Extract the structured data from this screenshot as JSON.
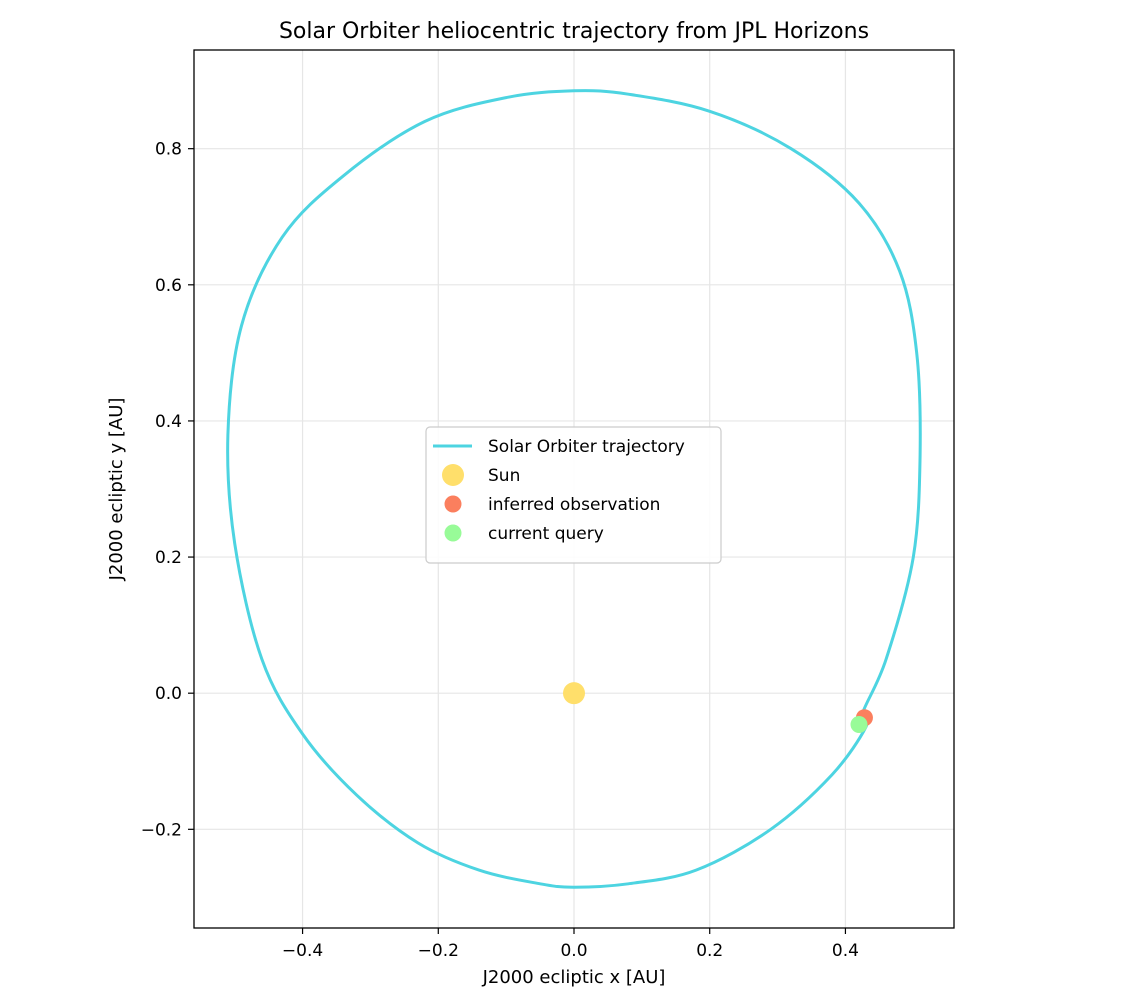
{
  "chart_data": {
    "type": "scatter",
    "title": "Solar Orbiter heliocentric trajectory from JPL Horizons",
    "xlabel": "J2000 ecliptic x [AU]",
    "ylabel": "J2000 ecliptic y [AU]",
    "xlim": [
      -0.56,
      0.56
    ],
    "ylim": [
      -0.345,
      0.945
    ],
    "xticks": [
      -0.4,
      -0.2,
      0.0,
      0.2,
      0.4
    ],
    "xtick_labels": [
      "−0.4",
      "−0.2",
      "0.0",
      "0.2",
      "0.4"
    ],
    "yticks": [
      -0.2,
      0.0,
      0.2,
      0.4,
      0.6,
      0.8
    ],
    "ytick_labels": [
      "−0.2",
      "0.0",
      "0.2",
      "0.4",
      "0.6",
      "0.8"
    ],
    "grid": true,
    "legend_position": "center",
    "series": [
      {
        "name": "Solar Orbiter trajectory",
        "kind": "line",
        "color": "#4dd4e1",
        "x": [
          0.425,
          0.46,
          0.5,
          0.51,
          0.505,
          0.48,
          0.42,
          0.32,
          0.2,
          0.08,
          0.0,
          -0.1,
          -0.22,
          -0.34,
          -0.43,
          -0.49,
          -0.51,
          -0.5,
          -0.46,
          -0.4,
          -0.32,
          -0.23,
          -0.14,
          -0.05,
          0.0,
          0.08,
          0.18,
          0.29,
          0.38,
          0.43
        ],
        "y": [
          -0.03,
          0.05,
          0.2,
          0.35,
          0.5,
          0.62,
          0.72,
          0.8,
          0.855,
          0.88,
          0.885,
          0.875,
          0.84,
          0.76,
          0.67,
          0.54,
          0.38,
          0.22,
          0.05,
          -0.06,
          -0.15,
          -0.22,
          -0.26,
          -0.28,
          -0.285,
          -0.28,
          -0.26,
          -0.2,
          -0.12,
          -0.05
        ]
      },
      {
        "name": "Sun",
        "kind": "point",
        "color": "#ffdf6b",
        "x": [
          0.0
        ],
        "y": [
          0.0
        ]
      },
      {
        "name": "inferred observation",
        "kind": "point",
        "color": "#fb7f5e",
        "x": [
          0.428
        ],
        "y": [
          -0.036
        ]
      },
      {
        "name": "current query",
        "kind": "point",
        "color": "#98fb98",
        "x": [
          0.42
        ],
        "y": [
          -0.046
        ]
      }
    ]
  }
}
